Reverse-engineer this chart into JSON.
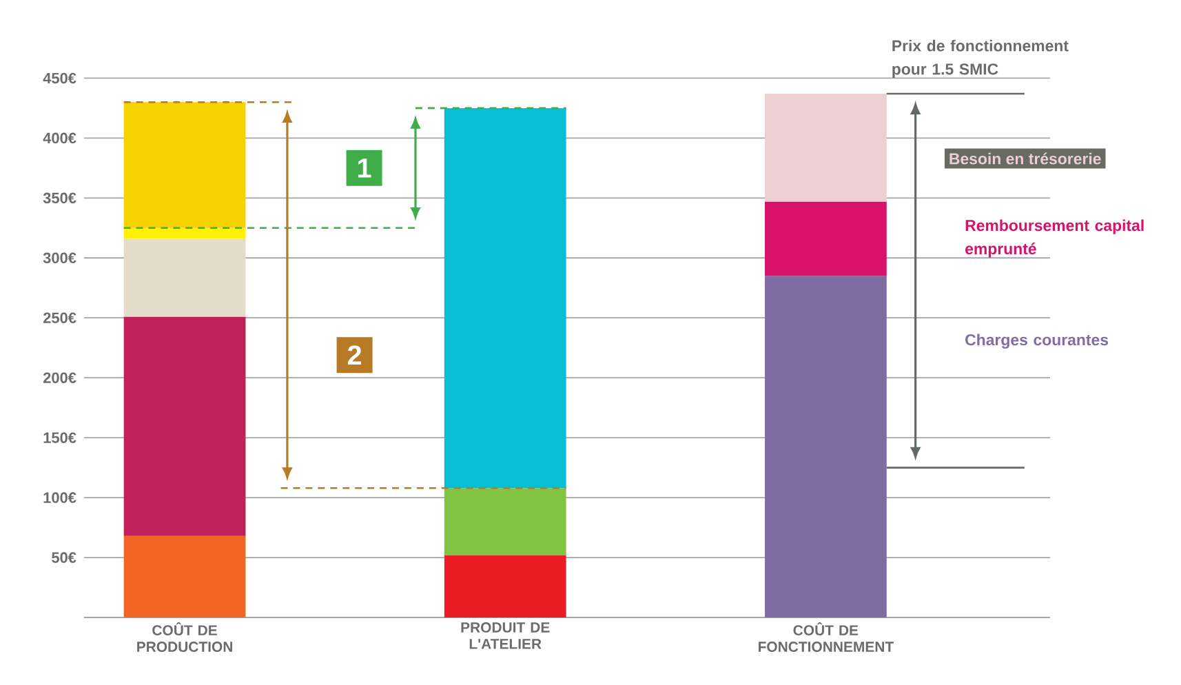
{
  "chart_data": {
    "type": "bar",
    "stacked": true,
    "categories": [
      "COÛT DE PRODUCTION",
      "PRODUIT DE L'ATELIER",
      "COÛT DE FONCTIONNEMENT"
    ],
    "series": [
      {
        "color": "#f26522",
        "values": [
          68,
          null,
          null
        ]
      },
      {
        "color": "#c1215b",
        "values": [
          183,
          null,
          null
        ]
      },
      {
        "color": "#e3dccb",
        "values": [
          65,
          null,
          null
        ]
      },
      {
        "color": "#fff200",
        "values": [
          9,
          null,
          null
        ]
      },
      {
        "color": "#f5d200",
        "values": [
          105,
          null,
          null
        ]
      },
      {
        "color": "#ec1c24",
        "values": [
          null,
          52,
          null
        ]
      },
      {
        "color": "#82c341",
        "values": [
          null,
          56,
          null
        ]
      },
      {
        "color": "#08bed5",
        "values": [
          null,
          317,
          null
        ]
      },
      {
        "name": "Charges courantes",
        "color": "#7f6ca1",
        "values": [
          null,
          null,
          285
        ]
      },
      {
        "name": "Remboursement capital emprunté",
        "color": "#d8126a",
        "values": [
          null,
          null,
          62
        ]
      },
      {
        "name": "Besoin en trésorerie",
        "color": "#eccfd2",
        "values": [
          null,
          null,
          90
        ]
      }
    ],
    "ylim": [
      0,
      450
    ],
    "yticks": [
      {
        "value": 0,
        "label": null
      },
      {
        "value": 50,
        "label": "50€"
      },
      {
        "value": 100,
        "label": "100€"
      },
      {
        "value": 150,
        "label": "150€"
      },
      {
        "value": 200,
        "label": "200€"
      },
      {
        "value": 250,
        "label": "250€"
      },
      {
        "value": 300,
        "label": "300€"
      },
      {
        "value": 350,
        "label": "350€"
      },
      {
        "value": 400,
        "label": "400€"
      },
      {
        "value": 450,
        "label": "450€"
      }
    ],
    "grid": "y",
    "ref_lines": [
      {
        "axis": "y",
        "value": 430,
        "color": "#b87a24",
        "line_style": "dashed"
      },
      {
        "axis": "y",
        "value": 108,
        "color": "#b87a24",
        "line_style": "dashed"
      },
      {
        "axis": "y",
        "value": 425,
        "color": "#3fae49",
        "line_style": "dashed"
      },
      {
        "axis": "y",
        "value": 325,
        "color": "#3fae49",
        "line_style": "dashed"
      },
      {
        "axis": "y",
        "value": 125,
        "color": "#636a63",
        "line_style": "solid"
      },
      {
        "axis": "y",
        "value": 437,
        "label": "Prix de fonctionnement pour 1.5 SMIC",
        "color": "#636a63",
        "line_style": "solid"
      }
    ],
    "annotations": [
      "1",
      "2"
    ]
  }
}
